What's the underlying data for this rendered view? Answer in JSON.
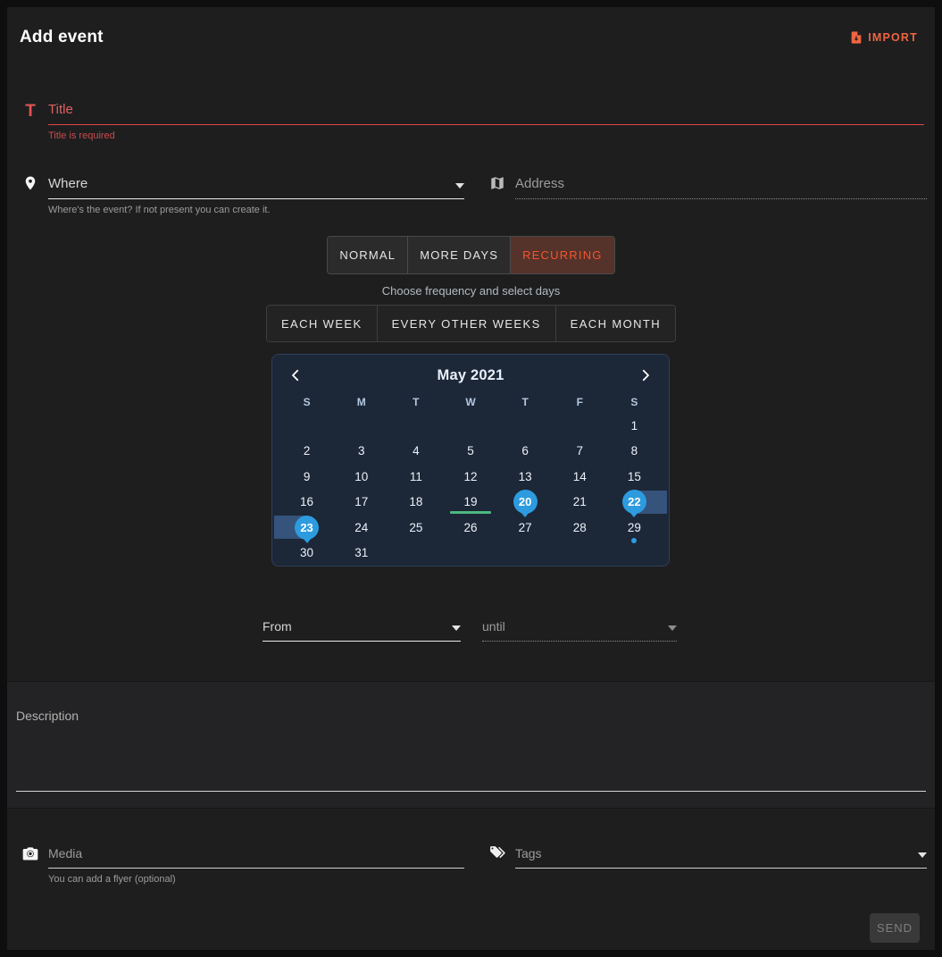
{
  "header": {
    "title": "Add event",
    "import": {
      "label": "IMPORT"
    }
  },
  "form": {
    "title": {
      "placeholder": "Title",
      "error": "Title is required"
    },
    "where": {
      "placeholder": "Where",
      "hint": "Where's the event? If not present you can create it."
    },
    "address": {
      "placeholder": "Address"
    },
    "mode_tabs": [
      {
        "label": "NORMAL",
        "selected": false
      },
      {
        "label": "MORE DAYS",
        "selected": false
      },
      {
        "label": "RECURRING",
        "selected": true
      }
    ],
    "frequency": {
      "hint": "Choose frequency and select days",
      "options": [
        {
          "label": "EACH WEEK",
          "selected": false
        },
        {
          "label": "EVERY OTHER WEEKS",
          "selected": false
        },
        {
          "label": "EACH MONTH",
          "selected": false
        }
      ]
    },
    "time": {
      "from": {
        "placeholder": "From"
      },
      "until": {
        "placeholder": "until"
      }
    },
    "description": {
      "placeholder": "Description"
    },
    "media": {
      "placeholder": "Media",
      "hint": "You can add a flyer (optional)"
    },
    "tags": {
      "placeholder": "Tags"
    },
    "send": {
      "label": "SEND"
    }
  },
  "calendar": {
    "month_label": "May 2021",
    "weekdays": [
      "S",
      "M",
      "T",
      "W",
      "T",
      "F",
      "S"
    ],
    "first_day_column": 6,
    "days_in_month": 31,
    "selected_days": [
      20,
      22,
      23
    ],
    "underlined_day": 19,
    "dot_day": 29,
    "range_to_right_edge_day": 22,
    "range_to_left_edge_day": 23
  },
  "colors": {
    "accent_orange": "#ef6440",
    "recurring_tab_bg": "#55322a",
    "error_red": "#e25454",
    "selection_blue": "#2d9bdf",
    "range_blue": "#35537b",
    "highlight_green": "#4db87f",
    "calendar_bg": "#1c2737"
  }
}
